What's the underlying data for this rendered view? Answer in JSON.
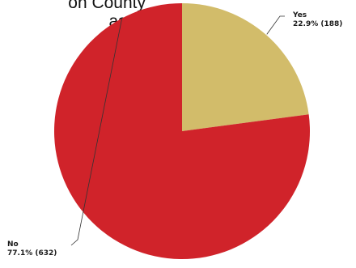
{
  "chart_data": {
    "type": "pie",
    "title_fragment": "on County\nased\ns",
    "colors": {
      "yes": "#d2bc6a",
      "no": "#d0232a",
      "leader": "#333333"
    },
    "slices": [
      {
        "name": "Yes",
        "percent": 22.9,
        "count": 188,
        "value_label": "22.9% (188)"
      },
      {
        "name": "No",
        "percent": 77.1,
        "count": 632,
        "value_label": "77.1% (632)"
      }
    ]
  }
}
